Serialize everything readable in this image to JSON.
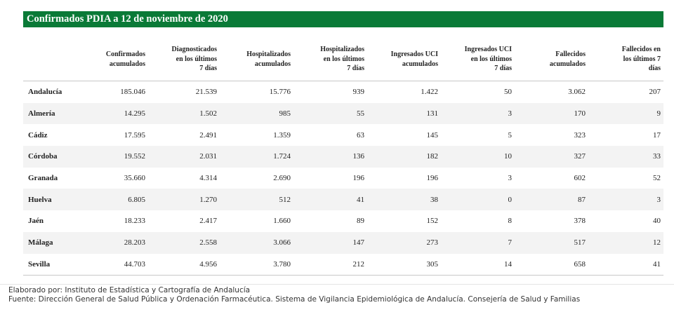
{
  "title": "Confirmados PDIA a 12 de noviembre de 2020",
  "columns": [
    {
      "line1": "",
      "line2": "",
      "line3": ""
    },
    {
      "line1": "Confirmados",
      "line2": "acumulados",
      "line3": ""
    },
    {
      "line1": "Diagnosticados",
      "line2": "en los últimos",
      "line3": "7 días"
    },
    {
      "line1": "Hospitalizados",
      "line2": "acumulados",
      "line3": ""
    },
    {
      "line1": "Hospitalizados",
      "line2": "en los últimos",
      "line3": "7 días"
    },
    {
      "line1": "Ingresados UCI",
      "line2": "acumulados",
      "line3": ""
    },
    {
      "line1": "Ingresados UCI",
      "line2": "en los últimos",
      "line3": "7 días"
    },
    {
      "line1": "Fallecidos",
      "line2": "acumulados",
      "line3": ""
    },
    {
      "line1": "Fallecidos en",
      "line2": "los últimos 7",
      "line3": "días"
    }
  ],
  "rows": [
    {
      "region": "Andalucía",
      "values": [
        "185.046",
        "21.539",
        "15.776",
        "939",
        "1.422",
        "50",
        "3.062",
        "207"
      ]
    },
    {
      "region": "Almería",
      "values": [
        "14.295",
        "1.502",
        "985",
        "55",
        "131",
        "3",
        "170",
        "9"
      ]
    },
    {
      "region": "Cádiz",
      "values": [
        "17.595",
        "2.491",
        "1.359",
        "63",
        "145",
        "5",
        "323",
        "17"
      ]
    },
    {
      "region": "Córdoba",
      "values": [
        "19.552",
        "2.031",
        "1.724",
        "136",
        "182",
        "10",
        "327",
        "33"
      ]
    },
    {
      "region": "Granada",
      "values": [
        "35.660",
        "4.314",
        "2.690",
        "196",
        "196",
        "3",
        "602",
        "52"
      ]
    },
    {
      "region": "Huelva",
      "values": [
        "6.805",
        "1.270",
        "512",
        "41",
        "38",
        "0",
        "87",
        "3"
      ]
    },
    {
      "region": "Jaén",
      "values": [
        "18.233",
        "2.417",
        "1.660",
        "89",
        "152",
        "8",
        "378",
        "40"
      ]
    },
    {
      "region": "Málaga",
      "values": [
        "28.203",
        "2.558",
        "3.066",
        "147",
        "273",
        "7",
        "517",
        "12"
      ]
    },
    {
      "region": "Sevilla",
      "values": [
        "44.703",
        "4.956",
        "3.780",
        "212",
        "305",
        "14",
        "658",
        "41"
      ]
    }
  ],
  "footer": {
    "elaborated_by": "Elaborado por: Instituto de Estadística y Cartografía de Andalucía",
    "source": "Fuente: Dirección General de Salud Pública y Ordenación Farmacéutica. Sistema de Vigilancia Epidemiológica de Andalucía. Consejería de Salud y Familias"
  }
}
